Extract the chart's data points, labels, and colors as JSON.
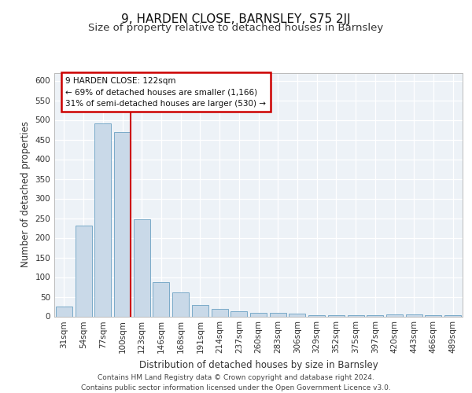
{
  "title": "9, HARDEN CLOSE, BARNSLEY, S75 2JJ",
  "subtitle": "Size of property relative to detached houses in Barnsley",
  "xlabel": "Distribution of detached houses by size in Barnsley",
  "ylabel": "Number of detached properties",
  "categories": [
    "31sqm",
    "54sqm",
    "77sqm",
    "100sqm",
    "123sqm",
    "146sqm",
    "168sqm",
    "191sqm",
    "214sqm",
    "237sqm",
    "260sqm",
    "283sqm",
    "306sqm",
    "329sqm",
    "352sqm",
    "375sqm",
    "397sqm",
    "420sqm",
    "443sqm",
    "466sqm",
    "489sqm"
  ],
  "values": [
    25,
    232,
    492,
    470,
    248,
    88,
    62,
    30,
    20,
    13,
    10,
    9,
    8,
    4,
    3,
    3,
    3,
    5,
    5,
    3,
    4
  ],
  "bar_color": "#c9d9e8",
  "bar_edge_color": "#7aaac8",
  "highlight_line_color": "#cc0000",
  "annotation_text": "9 HARDEN CLOSE: 122sqm\n← 69% of detached houses are smaller (1,166)\n31% of semi-detached houses are larger (530) →",
  "annotation_box_color": "#cc0000",
  "ylim": [
    0,
    620
  ],
  "yticks": [
    0,
    50,
    100,
    150,
    200,
    250,
    300,
    350,
    400,
    450,
    500,
    550,
    600
  ],
  "footer_text": "Contains HM Land Registry data © Crown copyright and database right 2024.\nContains public sector information licensed under the Open Government Licence v3.0.",
  "background_color": "#edf2f7",
  "grid_color": "#ffffff",
  "title_fontsize": 11,
  "subtitle_fontsize": 9.5,
  "axis_label_fontsize": 8.5,
  "tick_fontsize": 7.5,
  "footer_fontsize": 6.5
}
